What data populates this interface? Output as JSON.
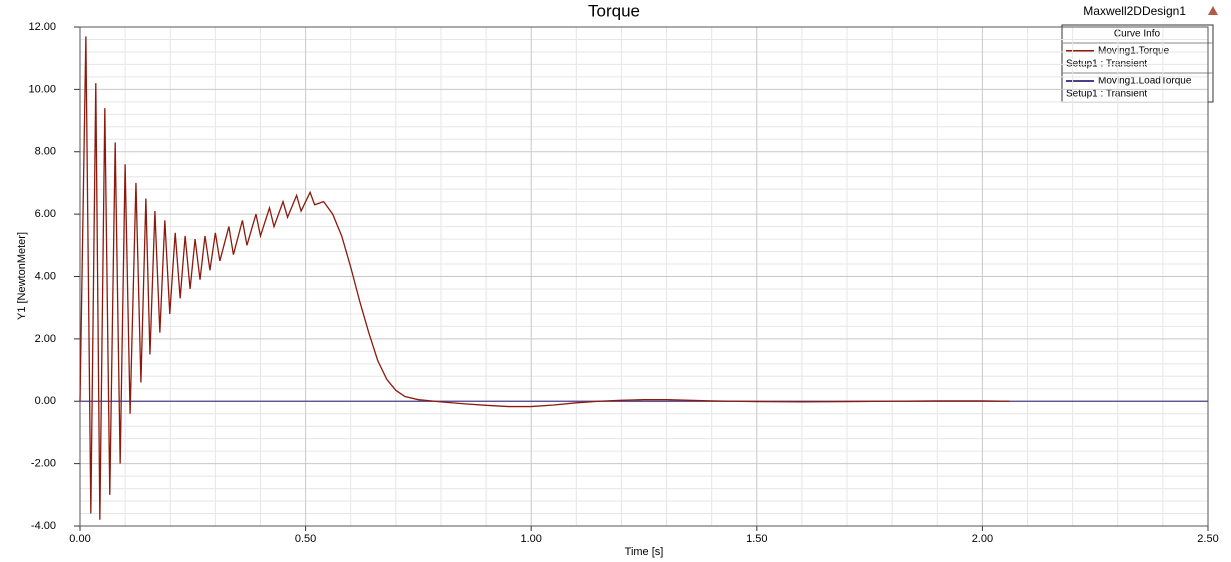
{
  "chart_data": {
    "type": "line",
    "title": "Torque",
    "design_name": "Maxwell2DDesign1",
    "legend_title": "Curve Info",
    "x_label": "Time [s]",
    "y_label": "Y1 [NewtonMeter]",
    "xlim": [
      0,
      2.5
    ],
    "ylim": [
      -4,
      12
    ],
    "grid": true,
    "xticks": [
      {
        "value": 0,
        "label": "0.00"
      },
      {
        "value": 0.5,
        "label": "0.50"
      },
      {
        "value": 1,
        "label": "1.00"
      },
      {
        "value": 1.5,
        "label": "1.50"
      },
      {
        "value": 2,
        "label": "2.00"
      },
      {
        "value": 2.5,
        "label": "2.50"
      }
    ],
    "yticks": [
      {
        "value": -4,
        "label": "-4.00"
      },
      {
        "value": -2,
        "label": "-2.00"
      },
      {
        "value": 0,
        "label": "0.00"
      },
      {
        "value": 2,
        "label": "2.00"
      },
      {
        "value": 4,
        "label": "4.00"
      },
      {
        "value": 6,
        "label": "6.00"
      },
      {
        "value": 8,
        "label": "8.00"
      },
      {
        "value": 10,
        "label": "10.00"
      },
      {
        "value": 12,
        "label": "12.00"
      }
    ],
    "series": [
      {
        "name": "Moving1.Torque",
        "setup": "Setup1 : Transient",
        "color": "#8b1a0e",
        "x": [
          0,
          0.013,
          0.024,
          0.035,
          0.044,
          0.055,
          0.066,
          0.078,
          0.089,
          0.1,
          0.111,
          0.124,
          0.135,
          0.146,
          0.155,
          0.166,
          0.177,
          0.188,
          0.199,
          0.211,
          0.222,
          0.233,
          0.244,
          0.255,
          0.266,
          0.277,
          0.288,
          0.3,
          0.31,
          0.33,
          0.34,
          0.36,
          0.37,
          0.39,
          0.4,
          0.42,
          0.43,
          0.45,
          0.46,
          0.48,
          0.49,
          0.51,
          0.52,
          0.54,
          0.56,
          0.58,
          0.6,
          0.62,
          0.64,
          0.66,
          0.68,
          0.7,
          0.72,
          0.75,
          0.8,
          0.85,
          0.9,
          0.95,
          1.0,
          1.05,
          1.1,
          1.15,
          1.2,
          1.25,
          1.3,
          1.35,
          1.4,
          1.45,
          1.5,
          1.6,
          1.7,
          1.8,
          1.9,
          2.0,
          2.06
        ],
        "values": [
          0,
          11.7,
          -3.6,
          10.2,
          -3.8,
          9.4,
          -3.0,
          8.3,
          -2.0,
          7.6,
          -0.4,
          7.0,
          0.6,
          6.5,
          1.5,
          6.1,
          2.2,
          5.8,
          2.8,
          5.4,
          3.3,
          5.3,
          3.6,
          5.2,
          3.9,
          5.3,
          4.2,
          5.4,
          4.5,
          5.6,
          4.7,
          5.8,
          5.0,
          6.0,
          5.3,
          6.2,
          5.6,
          6.4,
          5.9,
          6.6,
          6.1,
          6.7,
          6.3,
          6.4,
          6.0,
          5.3,
          4.3,
          3.2,
          2.2,
          1.3,
          0.7,
          0.35,
          0.15,
          0.05,
          -0.02,
          -0.08,
          -0.13,
          -0.17,
          -0.17,
          -0.12,
          -0.05,
          0,
          0.03,
          0.05,
          0.05,
          0.03,
          0.01,
          0,
          -0.01,
          -0.02,
          -0.01,
          0,
          0.01,
          0.01,
          0
        ]
      },
      {
        "name": "Moving1.LoadTorque",
        "setup": "Setup1 : Transient",
        "color": "#4b3f8c",
        "x": [
          0,
          2.5
        ],
        "values": [
          0,
          0
        ]
      }
    ]
  }
}
